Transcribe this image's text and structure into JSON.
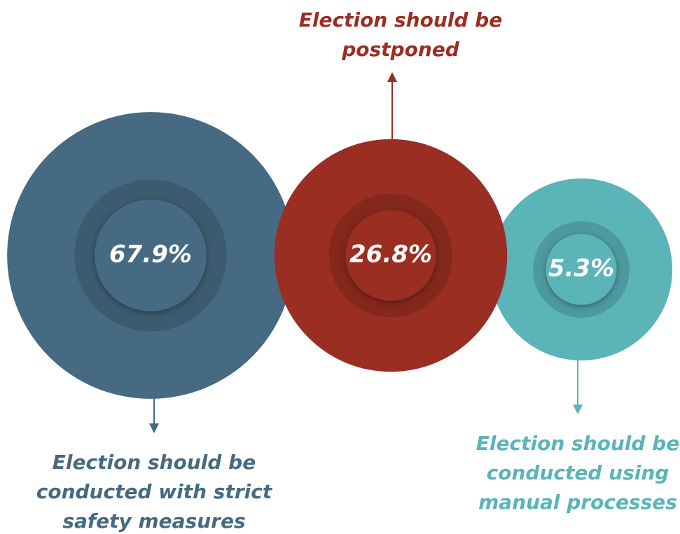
{
  "chart_data": {
    "type": "bubble",
    "categories": [
      [
        "Election should be",
        "conducted with strict",
        "safety measures"
      ],
      [
        "Election should be",
        "postponed"
      ],
      [
        "Election should be",
        "conducted using",
        "manual processes"
      ]
    ],
    "values": [
      67.9,
      26.8,
      5.3
    ],
    "value_labels": [
      "67.9%",
      "26.8%",
      "5.3%"
    ],
    "colors": [
      "#456a82",
      "#9a2e22",
      "#5ab4b8"
    ]
  }
}
